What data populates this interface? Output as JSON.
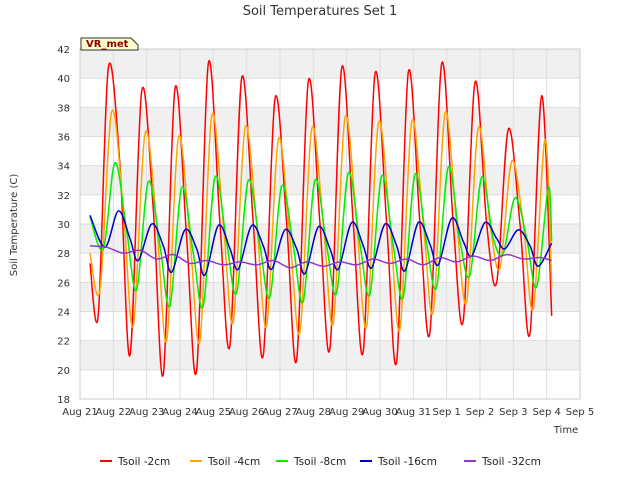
{
  "chart_data": {
    "type": "line",
    "title": "Soil Temperatures Set 1",
    "xlabel": "Time",
    "ylabel": "Soil Temperature (C)",
    "badge": "VR_met",
    "xlim": [
      0,
      15
    ],
    "ylim": [
      18,
      42
    ],
    "x_ticks": [
      "Aug 21",
      "Aug 22",
      "Aug 23",
      "Aug 24",
      "Aug 25",
      "Aug 26",
      "Aug 27",
      "Aug 28",
      "Aug 29",
      "Aug 30",
      "Aug 31",
      "Sep 1",
      "Sep 2",
      "Sep 3",
      "Sep 4",
      "Sep 5"
    ],
    "y_ticks": [
      "18",
      "20",
      "22",
      "24",
      "26",
      "28",
      "30",
      "32",
      "34",
      "36",
      "38",
      "40",
      "42"
    ],
    "grid": true,
    "legend_position": "bottom",
    "series": [
      {
        "name": "Tsoil -2cm",
        "color": "#ff0000",
        "x": [
          0.3,
          0.55,
          0.85,
          1.2,
          1.5,
          1.85,
          2.2,
          2.5,
          2.85,
          3.2,
          3.5,
          3.85,
          4.2,
          4.5,
          4.85,
          5.2,
          5.5,
          5.85,
          6.2,
          6.5,
          6.85,
          7.2,
          7.5,
          7.85,
          8.2,
          8.5,
          8.85,
          9.2,
          9.5,
          9.85,
          10.2,
          10.5,
          10.85,
          11.2,
          11.5,
          11.85,
          12.2,
          12.5,
          12.85,
          13.2,
          13.5,
          13.85,
          14.15
        ],
        "y": [
          27.3,
          23.8,
          40.7,
          34.0,
          21.0,
          39.1,
          31.0,
          19.7,
          39.3,
          29.0,
          20.0,
          41.0,
          30.0,
          21.7,
          40.0,
          30.0,
          21.0,
          38.6,
          30.0,
          20.7,
          39.8,
          30.0,
          21.5,
          40.7,
          30.0,
          21.3,
          40.3,
          30.0,
          20.6,
          40.4,
          30.0,
          22.6,
          41.0,
          30.0,
          23.4,
          39.7,
          30.0,
          26.0,
          36.5,
          30.0,
          22.5,
          38.8,
          23.7
        ]
      },
      {
        "name": "Tsoil -4cm",
        "color": "#ffa500",
        "x": [
          0.3,
          0.6,
          0.95,
          1.3,
          1.6,
          1.95,
          2.3,
          2.6,
          2.95,
          3.3,
          3.6,
          3.95,
          4.3,
          4.6,
          4.95,
          5.3,
          5.6,
          5.95,
          6.3,
          6.6,
          6.95,
          7.3,
          7.6,
          7.95,
          8.3,
          8.6,
          8.95,
          9.3,
          9.6,
          9.95,
          10.3,
          10.6,
          10.95,
          11.3,
          11.6,
          11.95,
          12.3,
          12.6,
          12.95,
          13.3,
          13.6,
          13.95,
          14.15
        ],
        "y": [
          28.0,
          25.5,
          37.7,
          31.0,
          23.0,
          36.2,
          30.0,
          22.0,
          35.9,
          29.0,
          22.0,
          37.4,
          30.0,
          23.3,
          36.6,
          30.0,
          23.0,
          35.8,
          29.0,
          22.6,
          36.5,
          30.0,
          23.2,
          37.3,
          30.0,
          23.0,
          36.9,
          30.0,
          22.8,
          37.0,
          30.0,
          24.0,
          37.6,
          30.0,
          24.7,
          36.6,
          30.0,
          27.0,
          34.3,
          30.0,
          24.2,
          35.8,
          25.7
        ]
      },
      {
        "name": "Tsoil -8cm",
        "color": "#00ee00",
        "x": [
          0.3,
          0.7,
          1.05,
          1.4,
          1.7,
          2.05,
          2.4,
          2.7,
          3.05,
          3.4,
          3.7,
          4.05,
          4.4,
          4.7,
          5.05,
          5.4,
          5.7,
          6.05,
          6.4,
          6.7,
          7.05,
          7.4,
          7.7,
          8.05,
          8.4,
          8.7,
          9.05,
          9.4,
          9.7,
          10.05,
          10.4,
          10.7,
          11.05,
          11.4,
          11.7,
          12.05,
          12.4,
          12.7,
          13.05,
          13.4,
          13.7,
          14.05,
          14.15
        ],
        "y": [
          30.5,
          28.3,
          34.2,
          29.5,
          25.5,
          32.9,
          28.5,
          24.4,
          32.5,
          28.0,
          24.4,
          33.2,
          28.7,
          25.3,
          33.0,
          28.5,
          25.0,
          32.6,
          28.5,
          24.7,
          33.0,
          28.5,
          25.3,
          33.5,
          28.6,
          25.2,
          33.3,
          28.5,
          25.0,
          33.4,
          28.6,
          25.7,
          33.9,
          28.8,
          26.5,
          33.2,
          29.0,
          28.0,
          31.8,
          29.0,
          25.7,
          32.5,
          28.8
        ]
      },
      {
        "name": "Tsoil -16cm",
        "color": "#0000cc",
        "x": [
          0.3,
          0.75,
          1.15,
          1.5,
          1.75,
          2.15,
          2.5,
          2.75,
          3.15,
          3.5,
          3.75,
          4.15,
          4.5,
          4.75,
          5.15,
          5.5,
          5.75,
          6.15,
          6.5,
          6.75,
          7.15,
          7.5,
          7.75,
          8.15,
          8.5,
          8.75,
          9.15,
          9.5,
          9.75,
          10.15,
          10.5,
          10.75,
          11.15,
          11.5,
          11.75,
          12.15,
          12.5,
          12.75,
          13.15,
          13.5,
          13.75,
          14.15
        ],
        "y": [
          30.6,
          28.4,
          30.9,
          29.0,
          27.5,
          30.0,
          28.5,
          26.7,
          29.6,
          28.3,
          26.5,
          29.9,
          28.3,
          26.9,
          29.9,
          28.5,
          26.9,
          29.6,
          28.3,
          26.6,
          29.8,
          28.3,
          26.9,
          30.1,
          28.5,
          27.0,
          30.0,
          28.5,
          26.8,
          30.1,
          28.6,
          27.2,
          30.4,
          28.8,
          27.8,
          30.1,
          29.0,
          28.3,
          29.6,
          28.5,
          27.1,
          28.7
        ]
      },
      {
        "name": "Tsoil -32cm",
        "color": "#9933cc",
        "x": [
          0.3,
          0.8,
          1.3,
          1.8,
          2.3,
          2.8,
          3.3,
          3.8,
          4.3,
          4.8,
          5.3,
          5.8,
          6.3,
          6.8,
          7.3,
          7.8,
          8.3,
          8.8,
          9.3,
          9.8,
          10.3,
          10.8,
          11.3,
          11.8,
          12.3,
          12.8,
          13.3,
          13.8,
          14.15
        ],
        "y": [
          28.5,
          28.4,
          28.0,
          28.2,
          27.6,
          27.9,
          27.3,
          27.5,
          27.2,
          27.4,
          27.2,
          27.5,
          27.0,
          27.4,
          27.1,
          27.4,
          27.2,
          27.6,
          27.3,
          27.6,
          27.2,
          27.7,
          27.4,
          27.8,
          27.5,
          27.9,
          27.6,
          27.7,
          27.5
        ]
      }
    ]
  }
}
